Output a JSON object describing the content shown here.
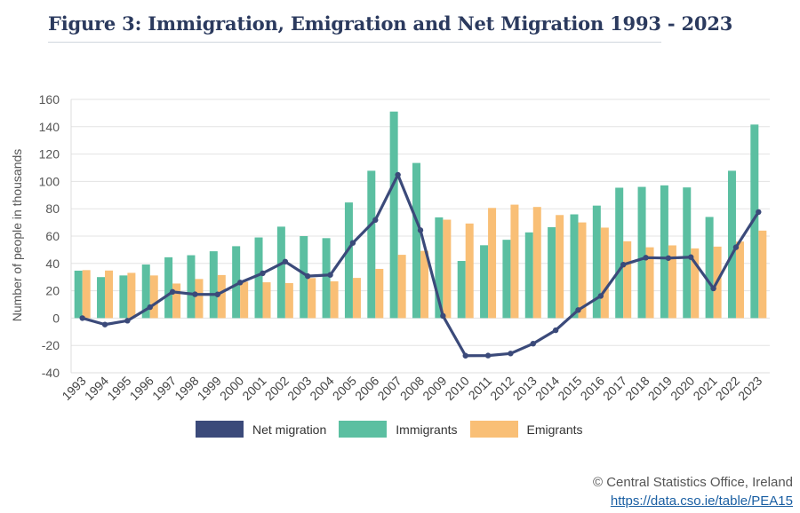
{
  "header": {
    "title": "Figure 3: Immigration, Emigration and Net Migration 1993 - 2023"
  },
  "footer": {
    "credit": "© Central Statistics Office, Ireland",
    "link": "https://data.cso.ie/table/PEA15"
  },
  "chart_data": {
    "type": "bar",
    "title": "Figure 3: Immigration, Emigration and Net Migration 1993 - 2023",
    "xlabel": "",
    "ylabel": "Number of people in thousands",
    "ylim": [
      -40,
      160
    ],
    "yticks": [
      -40,
      -20,
      0,
      20,
      40,
      60,
      80,
      100,
      120,
      140,
      160
    ],
    "grid": true,
    "legend_position": "bottom",
    "categories": [
      "1993",
      "1994",
      "1995",
      "1996",
      "1997",
      "1998",
      "1999",
      "2000",
      "2001",
      "2002",
      "2003",
      "2004",
      "2005",
      "2006",
      "2007",
      "2008",
      "2009",
      "2010",
      "2011",
      "2012",
      "2013",
      "2014",
      "2015",
      "2016",
      "2017",
      "2018",
      "2019",
      "2020",
      "2021",
      "2022",
      "2023"
    ],
    "series": [
      {
        "name": "Net migration",
        "type": "line",
        "color": "#3b4a7a",
        "values": [
          0,
          -4.7,
          -1.9,
          8,
          19.2,
          17.4,
          17.3,
          26,
          32.8,
          41.3,
          30.7,
          31.6,
          55,
          71.8,
          104.8,
          64.3,
          1.6,
          -27.5,
          -27.4,
          -25.9,
          -18.7,
          -8.9,
          5.9,
          16.2,
          39.1,
          44.2,
          43.9,
          44.6,
          21.7,
          51.8,
          77.6
        ]
      },
      {
        "name": "Immigrants",
        "type": "bar",
        "color": "#5bbfa1",
        "values": [
          34.7,
          30,
          31.2,
          39.2,
          44.5,
          46,
          48.9,
          52.6,
          59,
          66.9,
          60,
          58.5,
          84.6,
          107.8,
          151.1,
          113.5,
          73.7,
          41.8,
          53.3,
          57.3,
          62.7,
          66.5,
          75.9,
          82.3,
          95.4,
          96,
          97.1,
          95.6,
          74,
          107.8,
          141.6
        ]
      },
      {
        "name": "Emigrants",
        "type": "bar",
        "color": "#f9bf76",
        "values": [
          35.1,
          34.8,
          33.1,
          31.2,
          25.3,
          28.6,
          31.5,
          26.6,
          26.2,
          25.6,
          29.3,
          26.9,
          29.4,
          36,
          46.3,
          49.2,
          72,
          69.2,
          80.6,
          83,
          81.3,
          75.4,
          70,
          66.2,
          56.2,
          51.8,
          53.2,
          51,
          52.3,
          56,
          64
        ]
      }
    ]
  }
}
